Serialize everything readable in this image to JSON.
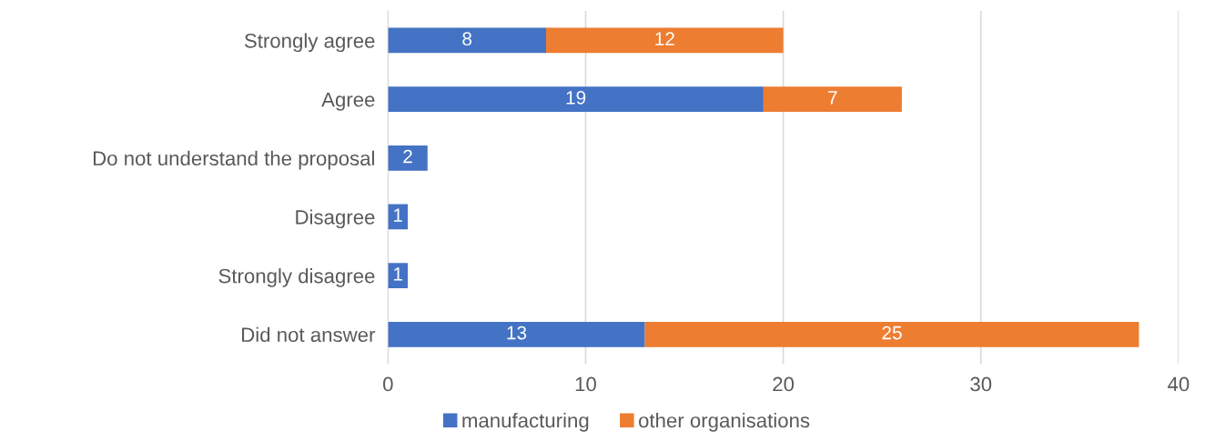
{
  "chart_data": {
    "type": "bar",
    "orientation": "horizontal",
    "stacked": true,
    "categories": [
      "Strongly agree",
      "Agree",
      "Do not understand the proposal",
      "Disagree",
      "Strongly disagree",
      "Did not answer"
    ],
    "series": [
      {
        "name": "manufacturing",
        "color": "#4472c4",
        "values": [
          8,
          19,
          2,
          1,
          1,
          13
        ]
      },
      {
        "name": "other organisations",
        "color": "#ed7d31",
        "values": [
          12,
          7,
          null,
          null,
          null,
          25
        ]
      }
    ],
    "xlim": [
      0,
      40
    ],
    "xticks": [
      0,
      10,
      20,
      30,
      40
    ],
    "grid": "x",
    "legend": "bottom",
    "data_labels": true
  }
}
